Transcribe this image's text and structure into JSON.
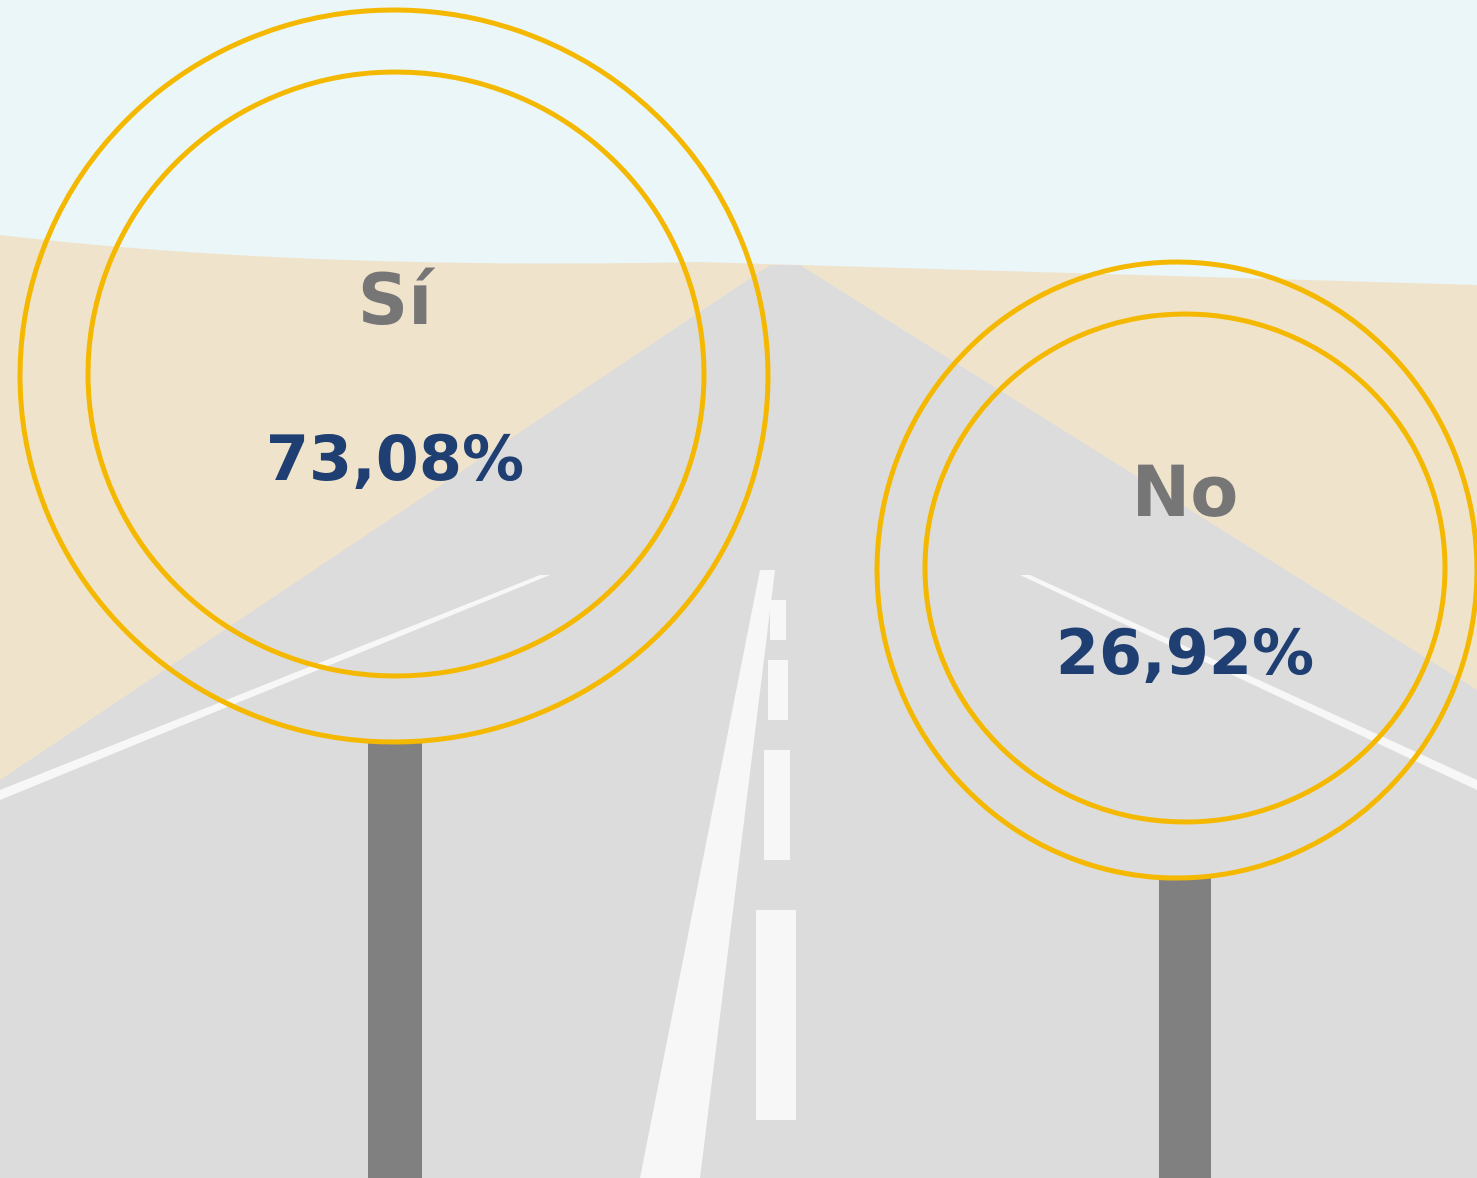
{
  "signs": [
    {
      "label": "Sí",
      "value": "73,08%"
    },
    {
      "label": "No",
      "value": "26,92%"
    }
  ]
}
